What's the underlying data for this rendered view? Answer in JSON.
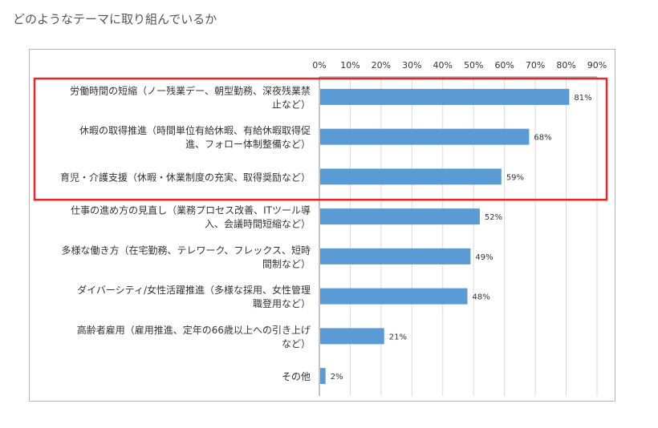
{
  "page": {
    "heading": "どのようなテーマに取り組んでいるか"
  },
  "chart_data": {
    "type": "bar",
    "orientation": "horizontal",
    "axis_position": "top",
    "xlim": [
      0,
      90
    ],
    "tick_step": 10,
    "tick_labels": [
      "0%",
      "10%",
      "20%",
      "30%",
      "40%",
      "50%",
      "60%",
      "70%",
      "80%",
      "90%"
    ],
    "gridlines": true,
    "categories": [
      [
        "労働時間の短縮（ノー残業デー、朝型勤務、深夜残業禁",
        "止など）"
      ],
      [
        "休暇の取得推進（時間単位有給休暇、有給休暇取得促",
        "進、フォロー体制整備など）"
      ],
      [
        "育児・介護支援（休暇・休業制度の充実、取得奨励など）"
      ],
      [
        "仕事の進め方の見直し（業務プロセス改善、ITツール導",
        "入、会議時間短縮など）"
      ],
      [
        "多様な働き方（在宅勤務、テレワーク、フレックス、短時",
        "間制など）"
      ],
      [
        "ダイバーシティ/女性活躍推進（多様な採用、女性管理",
        "職登用など）"
      ],
      [
        "高齢者雇用（雇用推進、定年の66歳以上への引き上げ",
        "など）"
      ],
      [
        "その他"
      ]
    ],
    "values": [
      81,
      68,
      59,
      52,
      49,
      48,
      21,
      2
    ],
    "data_labels": [
      "81%",
      "68%",
      "59%",
      "52%",
      "49%",
      "48%",
      "21%",
      "2%"
    ],
    "highlight": {
      "from_index": 0,
      "to_index": 2
    },
    "colors": {
      "bar": "#5b9bd5",
      "highlight_box": "#e8262c",
      "grid": "#d9d9d9",
      "text": "#333333"
    }
  }
}
